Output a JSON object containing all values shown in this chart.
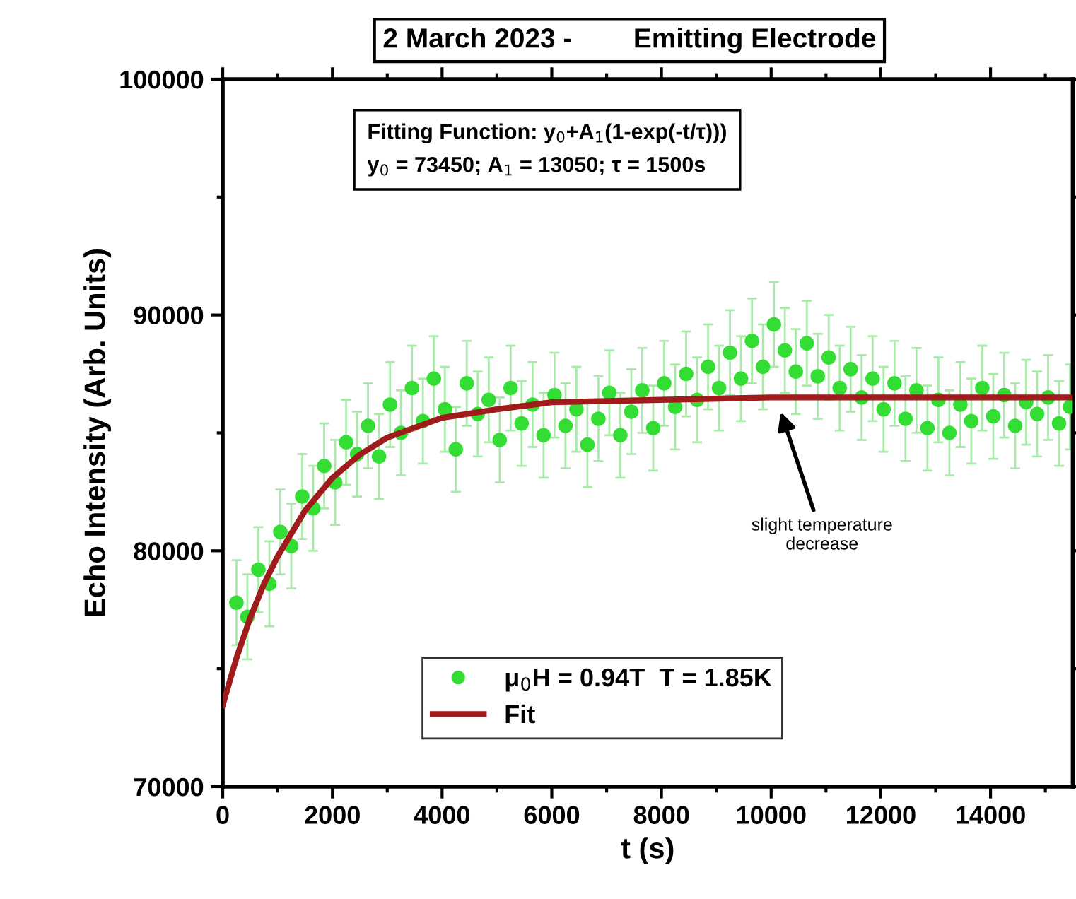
{
  "chart_data": {
    "type": "scatter",
    "title": "2 March 2023 -        Emitting Electrode",
    "xlabel": "t (s)",
    "ylabel": "Echo Intensity (Arb. Units)",
    "annotations": [
      "Fitting Function: y$_{0}$+A$_{1}$(1-exp(-t/τ)))\ny$_{0}$ = 73450; A$_{1}$ = 13050; τ = 1500s",
      "slight temperature\ndecrease"
    ],
    "series": [
      {
        "name": "μ$_{0}$H = 0.94T  T = 1.85K",
        "color": "#33dd33",
        "marker": "circle",
        "x": [
          250,
          450,
          650,
          850,
          1050,
          1250,
          1450,
          1650,
          1850,
          2050,
          2250,
          2450,
          2650,
          2850,
          3050,
          3250,
          3450,
          3650,
          3850,
          4050,
          4250,
          4450,
          4650,
          4850,
          5050,
          5250,
          5450,
          5650,
          5850,
          6050,
          6250,
          6450,
          6650,
          6850,
          7050,
          7250,
          7450,
          7650,
          7850,
          8050,
          8250,
          8450,
          8650,
          8850,
          9050,
          9250,
          9450,
          9650,
          9850,
          10050,
          10250,
          10450,
          10650,
          10850,
          11050,
          11250,
          11450,
          11650,
          11850,
          12050,
          12250,
          12450,
          12650,
          12850,
          13050,
          13250,
          13450,
          13650,
          13850,
          14050,
          14250,
          14450,
          14650,
          14850,
          15050,
          15250,
          15450
        ],
        "values": [
          77800,
          77200,
          79200,
          78600,
          80800,
          80200,
          82300,
          81800,
          83600,
          82900,
          84600,
          84100,
          85300,
          84000,
          86200,
          85000,
          86900,
          85500,
          87300,
          86000,
          84300,
          87100,
          85800,
          86400,
          84700,
          86900,
          85400,
          86200,
          84900,
          86600,
          85300,
          86000,
          84500,
          85600,
          86700,
          84900,
          85900,
          86800,
          85200,
          87100,
          86100,
          87500,
          86400,
          87800,
          86900,
          88400,
          87300,
          88900,
          87800,
          89600,
          88500,
          87600,
          88800,
          87400,
          88200,
          86900,
          87700,
          86500,
          87300,
          86000,
          87100,
          85600,
          86800,
          85200,
          86400,
          85000,
          86200,
          85500,
          86900,
          85700,
          86600,
          85300,
          86300,
          85800,
          86500,
          85400,
          86100
        ],
        "errors": [
          1800,
          1800,
          1800,
          1800,
          1800,
          1800,
          1800,
          1800,
          1800,
          1800,
          1800,
          1800,
          1800,
          1800,
          1800,
          1800,
          1800,
          1800,
          1800,
          1800,
          1800,
          1800,
          1800,
          1800,
          1800,
          1800,
          1800,
          1800,
          1800,
          1800,
          1800,
          1800,
          1800,
          1800,
          1800,
          1800,
          1800,
          1800,
          1800,
          1800,
          1800,
          1800,
          1800,
          1800,
          1800,
          1800,
          1800,
          1800,
          1800,
          1800,
          1800,
          1800,
          1800,
          1800,
          1800,
          1800,
          1800,
          1800,
          1800,
          1800,
          1800,
          1800,
          1800,
          1800,
          1800,
          1800,
          1800,
          1800,
          1800,
          1800,
          1800,
          1800,
          1800,
          1800,
          1800,
          1800,
          1800
        ]
      },
      {
        "name": "Fit",
        "type": "line",
        "color": "#a01c1c",
        "line_style": "solid",
        "x": [
          0,
          250,
          500,
          750,
          1000,
          1500,
          2000,
          2500,
          3000,
          4000,
          5000,
          6000,
          8000,
          10000,
          12000,
          15500
        ],
        "values": [
          73450,
          75450,
          77150,
          78580,
          79760,
          81700,
          83090,
          84080,
          84800,
          85640,
          86000,
          86300,
          86400,
          86500,
          86500,
          86500
        ]
      }
    ],
    "xlim": [
      0,
      15500
    ],
    "xticks": [
      0,
      2000,
      4000,
      6000,
      8000,
      10000,
      12000,
      14000
    ],
    "ylim": [
      70000,
      100000
    ],
    "yticks": [
      70000,
      80000,
      90000,
      100000
    ],
    "grid": false,
    "legend": "bottom"
  }
}
